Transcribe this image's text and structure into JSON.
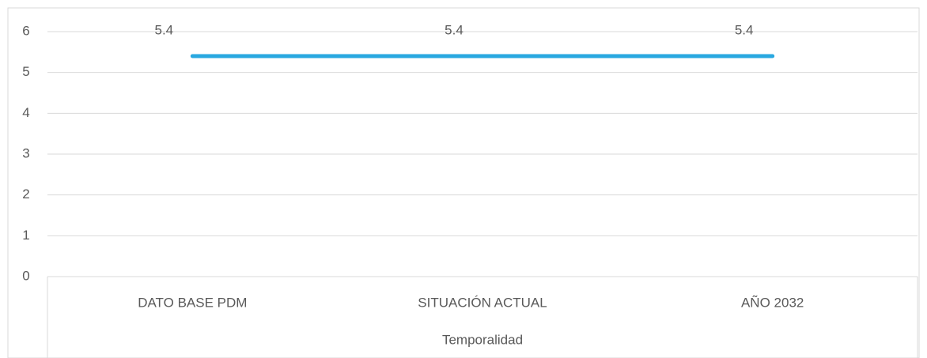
{
  "chart_data": {
    "type": "line",
    "categories": [
      "DATO BASE PDM",
      "SITUACIÓN ACTUAL",
      "AÑO 2032"
    ],
    "series": [
      {
        "name": null,
        "color": "#29a8e0",
        "values": [
          5.4,
          5.4,
          5.4
        ]
      }
    ],
    "xlabel": "Temporalidad",
    "ylim": [
      0,
      6
    ],
    "yticks": [
      0,
      1,
      2,
      3,
      4,
      5,
      6
    ],
    "grid": true,
    "data_labels": true
  }
}
